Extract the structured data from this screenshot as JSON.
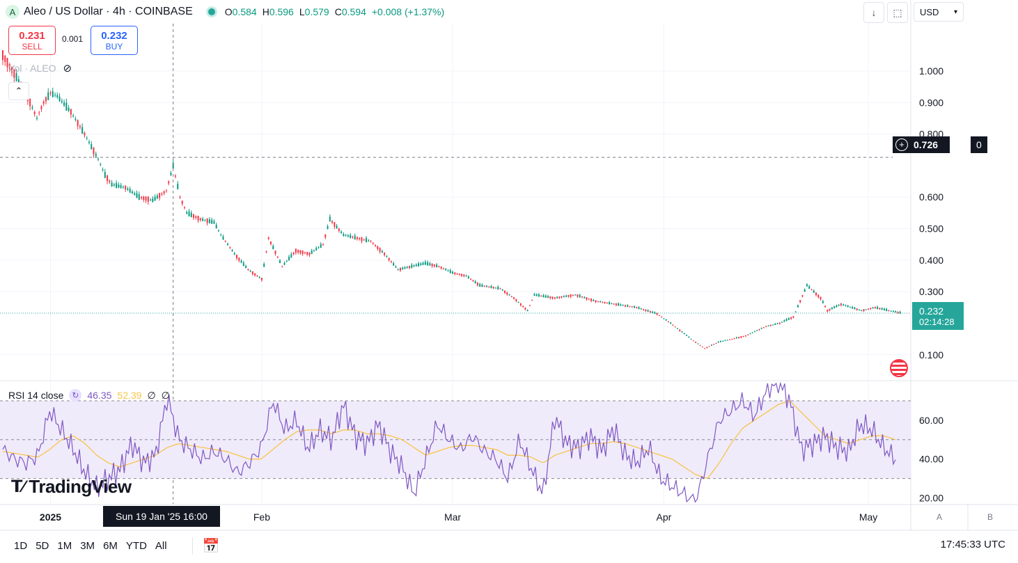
{
  "header": {
    "symbol_badge": "A",
    "title": "Aleo / US Dollar · 4h · COINBASE",
    "ohlc": [
      {
        "key": "O",
        "value": "0.584"
      },
      {
        "key": "H",
        "value": "0.596"
      },
      {
        "key": "L",
        "value": "0.579"
      },
      {
        "key": "C",
        "value": "0.594"
      }
    ],
    "change": "+0.008 (+1.37%)",
    "currency": "USD"
  },
  "trade": {
    "sell_price": "0.231",
    "sell_label": "SELL",
    "spread": "0.001",
    "buy_price": "0.232",
    "buy_label": "BUY"
  },
  "indicators": {
    "volume_label": "Vol · ALEO",
    "rsi_label": "RSI 14 close",
    "rsi_value": "46.35",
    "rsi_ma_value": "52.39",
    "rsi_extra1": "∅",
    "rsi_extra2": "∅"
  },
  "price_axis": {
    "labels": [
      "1.000",
      "0.900",
      "0.800",
      "0.600",
      "0.500",
      "0.400",
      "0.300",
      "0.100"
    ],
    "crosshair_price": "0.726",
    "crosshair_extra": "0",
    "last_price": "0.232",
    "countdown": "02:14:28"
  },
  "rsi_axis": {
    "labels": [
      "60.00",
      "40.00",
      "20.00"
    ]
  },
  "time_axis": {
    "labels": [
      "2025",
      "Feb",
      "Mar",
      "Apr",
      "May"
    ],
    "cursor_label": "Sun 19 Jan '25   16:00"
  },
  "ranges": [
    "1D",
    "5D",
    "1M",
    "3M",
    "6M",
    "YTD",
    "All"
  ],
  "clock": "17:45:33 UTC",
  "axis_buttons": {
    "a": "A",
    "b": "B"
  },
  "brand": "TradingView",
  "colors": {
    "up": "#089981",
    "down": "#f23645",
    "rsi": "#7e57c2",
    "rsi_ma": "#f7c548",
    "last_price_bg": "#26a69a",
    "rsi_band": "#f0ebfb"
  },
  "chart_data": [
    {
      "type": "line",
      "title": "Aleo / US Dollar · 4h · COINBASE",
      "ylim": [
        0.02,
        1.15
      ],
      "x_range": [
        "2024-12-25",
        "2025-05-06"
      ],
      "series": [
        {
          "name": "Aleo / US Dollar",
          "points": [
            [
              "2024-12-25",
              1.05
            ],
            [
              "2024-12-27",
              0.98
            ],
            [
              "2024-12-29",
              0.9
            ],
            [
              "2024-12-30",
              0.85
            ],
            [
              "2024-12-31",
              0.9
            ],
            [
              "2025-01-01",
              0.93
            ],
            [
              "2025-01-02",
              0.92
            ],
            [
              "2025-01-04",
              0.87
            ],
            [
              "2025-01-06",
              0.8
            ],
            [
              "2025-01-08",
              0.72
            ],
            [
              "2025-01-09",
              0.67
            ],
            [
              "2025-01-10",
              0.64
            ],
            [
              "2025-01-12",
              0.63
            ],
            [
              "2025-01-14",
              0.6
            ],
            [
              "2025-01-16",
              0.59
            ],
            [
              "2025-01-18",
              0.62
            ],
            [
              "2025-01-19",
              0.7
            ],
            [
              "2025-01-20",
              0.6
            ],
            [
              "2025-01-21",
              0.55
            ],
            [
              "2025-01-23",
              0.53
            ],
            [
              "2025-01-25",
              0.52
            ],
            [
              "2025-01-26",
              0.48
            ],
            [
              "2025-01-28",
              0.42
            ],
            [
              "2025-01-30",
              0.37
            ],
            [
              "2025-02-01",
              0.34
            ],
            [
              "2025-02-02",
              0.47
            ],
            [
              "2025-02-04",
              0.38
            ],
            [
              "2025-02-06",
              0.43
            ],
            [
              "2025-02-08",
              0.42
            ],
            [
              "2025-02-10",
              0.45
            ],
            [
              "2025-02-11",
              0.53
            ],
            [
              "2025-02-13",
              0.48
            ],
            [
              "2025-02-15",
              0.47
            ],
            [
              "2025-02-17",
              0.46
            ],
            [
              "2025-02-19",
              0.42
            ],
            [
              "2025-02-21",
              0.37
            ],
            [
              "2025-02-23",
              0.38
            ],
            [
              "2025-02-25",
              0.39
            ],
            [
              "2025-02-27",
              0.38
            ],
            [
              "2025-03-01",
              0.36
            ],
            [
              "2025-03-03",
              0.35
            ],
            [
              "2025-03-05",
              0.32
            ],
            [
              "2025-03-08",
              0.31
            ],
            [
              "2025-03-10",
              0.28
            ],
            [
              "2025-03-12",
              0.24
            ],
            [
              "2025-03-13",
              0.29
            ],
            [
              "2025-03-16",
              0.28
            ],
            [
              "2025-03-19",
              0.29
            ],
            [
              "2025-03-22",
              0.27
            ],
            [
              "2025-03-25",
              0.26
            ],
            [
              "2025-03-28",
              0.25
            ],
            [
              "2025-03-31",
              0.23
            ],
            [
              "2025-04-02",
              0.2
            ],
            [
              "2025-04-05",
              0.15
            ],
            [
              "2025-04-07",
              0.12
            ],
            [
              "2025-04-09",
              0.14
            ],
            [
              "2025-04-11",
              0.15
            ],
            [
              "2025-04-13",
              0.16
            ],
            [
              "2025-04-16",
              0.19
            ],
            [
              "2025-04-18",
              0.2
            ],
            [
              "2025-04-20",
              0.22
            ],
            [
              "2025-04-21",
              0.27
            ],
            [
              "2025-04-22",
              0.32
            ],
            [
              "2025-04-24",
              0.28
            ],
            [
              "2025-04-25",
              0.24
            ],
            [
              "2025-04-27",
              0.26
            ],
            [
              "2025-04-30",
              0.24
            ],
            [
              "2025-05-02",
              0.25
            ],
            [
              "2025-05-04",
              0.24
            ],
            [
              "2025-05-06",
              0.232
            ]
          ]
        }
      ]
    },
    {
      "type": "line",
      "title": "RSI 14 close",
      "ylim": [
        17,
        80
      ],
      "x_range": [
        "2024-12-25",
        "2025-05-06"
      ],
      "reference_lines": [
        70,
        50,
        30
      ],
      "series": [
        {
          "name": "RSI",
          "values": [
            45,
            40,
            38,
            42,
            65,
            55,
            45,
            33,
            25,
            30,
            35,
            48,
            38,
            42,
            72,
            50,
            45,
            40,
            44,
            40,
            33,
            38,
            46,
            70,
            55,
            60,
            45,
            55,
            50,
            68,
            52,
            48,
            58,
            44,
            36,
            22,
            40,
            58,
            50,
            45,
            52,
            44,
            40,
            30,
            50,
            35,
            22,
            62,
            48,
            46,
            52,
            44,
            56,
            42,
            38,
            46,
            30,
            26,
            22,
            18,
            40,
            60,
            65,
            70,
            62,
            75,
            80,
            70,
            45,
            48,
            52,
            46,
            44,
            58,
            55,
            46,
            40
          ]
        },
        {
          "name": "RSI MA",
          "values": [
            44,
            43,
            42,
            41,
            45,
            50,
            52,
            48,
            42,
            38,
            36,
            38,
            40,
            42,
            46,
            48,
            47,
            46,
            45,
            44,
            42,
            40,
            40,
            45,
            50,
            54,
            55,
            55,
            53,
            55,
            55,
            53,
            53,
            52,
            50,
            46,
            42,
            44,
            46,
            47,
            47,
            46,
            45,
            42,
            42,
            41,
            38,
            42,
            44,
            46,
            48,
            48,
            49,
            48,
            46,
            44,
            42,
            40,
            36,
            32,
            30,
            38,
            48,
            56,
            60,
            64,
            68,
            70,
            64,
            58,
            52,
            50,
            48,
            50,
            52,
            52,
            50
          ]
        }
      ]
    }
  ]
}
